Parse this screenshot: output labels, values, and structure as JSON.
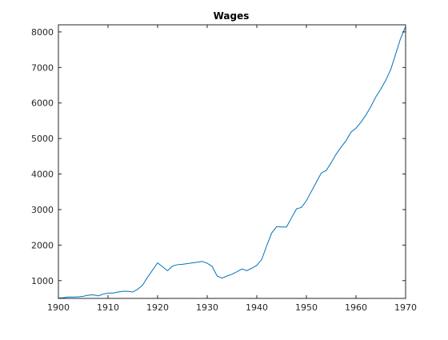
{
  "chart_data": {
    "type": "line",
    "title": "Wages",
    "xlabel": "",
    "ylabel": "",
    "xlim": [
      1900,
      1970
    ],
    "ylim": [
      500,
      8200
    ],
    "xticks": [
      1900,
      1910,
      1920,
      1930,
      1940,
      1950,
      1960,
      1970
    ],
    "yticks": [
      1000,
      2000,
      3000,
      4000,
      5000,
      6000,
      7000,
      8000
    ],
    "grid": false,
    "legend": "none",
    "series": [
      {
        "color": "#0072BD",
        "x": [
          1900,
          1901,
          1902,
          1903,
          1904,
          1905,
          1906,
          1907,
          1908,
          1909,
          1910,
          1911,
          1912,
          1913,
          1914,
          1915,
          1916,
          1917,
          1918,
          1919,
          1920,
          1921,
          1922,
          1923,
          1924,
          1925,
          1926,
          1927,
          1928,
          1929,
          1930,
          1931,
          1932,
          1933,
          1934,
          1935,
          1936,
          1937,
          1938,
          1939,
          1940,
          1941,
          1942,
          1943,
          1944,
          1945,
          1946,
          1947,
          1948,
          1949,
          1950,
          1951,
          1952,
          1953,
          1954,
          1955,
          1956,
          1957,
          1958,
          1959,
          1960,
          1961,
          1962,
          1963,
          1964,
          1965,
          1966,
          1967,
          1968,
          1969,
          1970
        ],
        "y": [
          510,
          520,
          540,
          540,
          545,
          560,
          590,
          600,
          570,
          620,
          650,
          650,
          680,
          700,
          700,
          680,
          760,
          880,
          1100,
          1300,
          1500,
          1390,
          1280,
          1410,
          1450,
          1460,
          1480,
          1500,
          1520,
          1540,
          1490,
          1400,
          1130,
          1070,
          1130,
          1180,
          1250,
          1330,
          1280,
          1350,
          1430,
          1600,
          1980,
          2340,
          2520,
          2510,
          2510,
          2770,
          3020,
          3060,
          3250,
          3510,
          3770,
          4030,
          4100,
          4320,
          4560,
          4760,
          4940,
          5180,
          5290,
          5460,
          5660,
          5900,
          6170,
          6390,
          6640,
          6940,
          7380,
          7820,
          8150
        ]
      }
    ]
  }
}
